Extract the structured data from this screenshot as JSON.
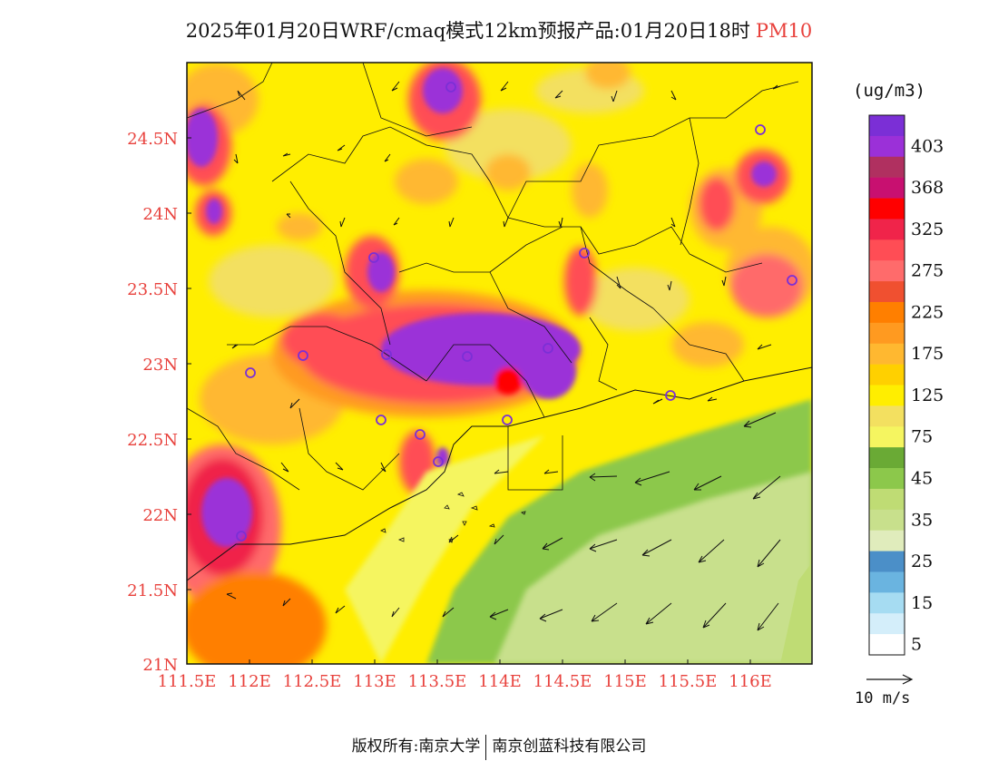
{
  "title": {
    "main": "2025年01月20日WRF/cmaq模式12km预报产品:01月20日18时",
    "variable": "PM10"
  },
  "map": {
    "lon_labels": [
      "111.5E",
      "112E",
      "112.5E",
      "113E",
      "113.5E",
      "114E",
      "114.5E",
      "115E",
      "115.5E",
      "116E"
    ],
    "lat_labels": [
      "24.5N",
      "24N",
      "23.5N",
      "23N",
      "22.5N",
      "22N",
      "21.5N",
      "21N"
    ],
    "label_color": "#e8413c",
    "lon_range": [
      111.5,
      116.7
    ],
    "lat_range": [
      21.0,
      25.0
    ]
  },
  "legend": {
    "units": "(ug/m3)",
    "levels": [
      {
        "label": "",
        "color": "#7b2fd6"
      },
      {
        "label": "403",
        "color": "#9b30d8"
      },
      {
        "label": "",
        "color": "#b03060"
      },
      {
        "label": "368",
        "color": "#c81070"
      },
      {
        "label": "",
        "color": "#ff0000"
      },
      {
        "label": "325",
        "color": "#f0244a"
      },
      {
        "label": "",
        "color": "#ff4d55"
      },
      {
        "label": "275",
        "color": "#ff6b6b"
      },
      {
        "label": "",
        "color": "#f05030"
      },
      {
        "label": "225",
        "color": "#ff7f00"
      },
      {
        "label": "",
        "color": "#ff9a20"
      },
      {
        "label": "175",
        "color": "#ffb830"
      },
      {
        "label": "",
        "color": "#ffd000"
      },
      {
        "label": "125",
        "color": "#ffee00"
      },
      {
        "label": "",
        "color": "#f3e060"
      },
      {
        "label": "75",
        "color": "#f5f560"
      },
      {
        "label": "",
        "color": "#6aaa35"
      },
      {
        "label": "45",
        "color": "#8cc84b"
      },
      {
        "label": "",
        "color": "#bfdc74"
      },
      {
        "label": "35",
        "color": "#c8e08c"
      },
      {
        "label": "",
        "color": "#e0ecbc"
      },
      {
        "label": "25",
        "color": "#4b8fc8"
      },
      {
        "label": "",
        "color": "#6ab4e0"
      },
      {
        "label": "15",
        "color": "#a6dcf2"
      },
      {
        "label": "",
        "color": "#d4eefa"
      },
      {
        "label": "5",
        "color": "#ffffff"
      }
    ]
  },
  "wind_reference": {
    "label": "10 m/s"
  },
  "footer": {
    "left": "版权所有:南京大学",
    "right": "南京创蓝科技有限公司"
  }
}
